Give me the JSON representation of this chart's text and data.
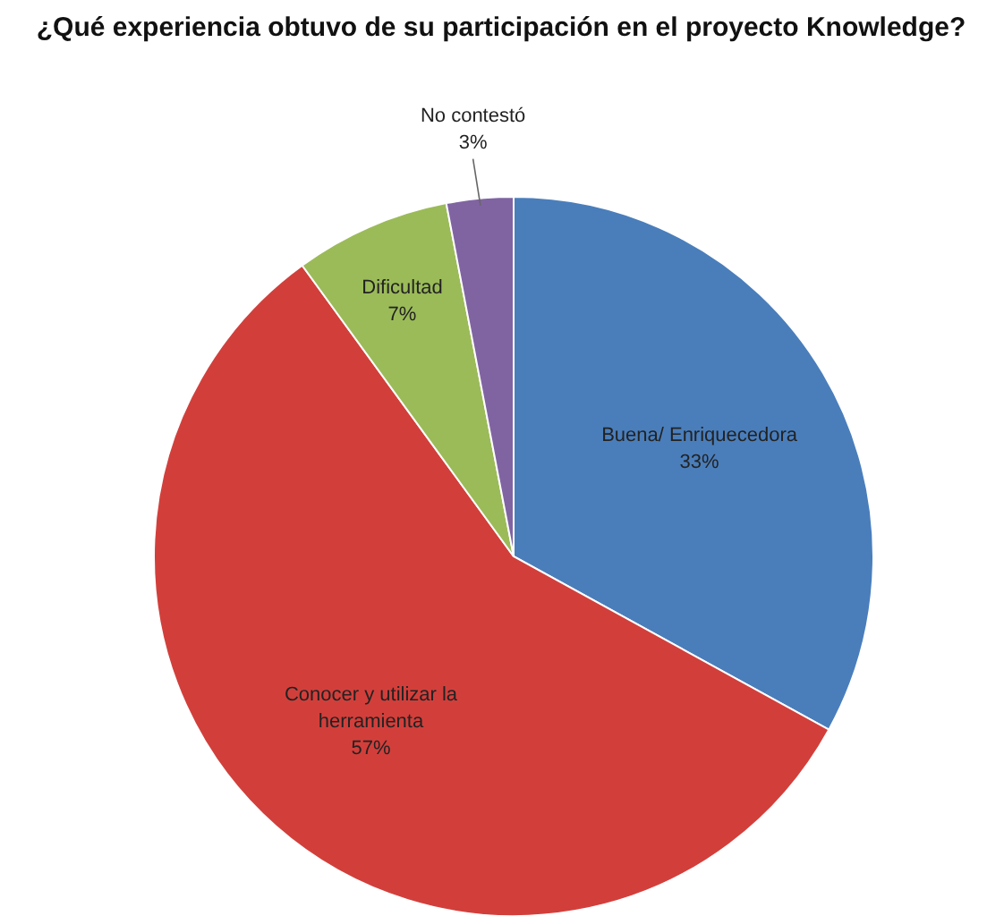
{
  "chart_data": {
    "type": "pie",
    "title": "¿Qué experiencia obtuvo de su participación en el proyecto Knowledge?",
    "categories": [
      "Buena/ Enriquecedora",
      "Conocer y utilizar la herramienta",
      "Dificultad",
      "No contestó"
    ],
    "values": [
      33,
      57,
      7,
      3
    ],
    "colors": [
      "#4a7ebb",
      "#d23f3b",
      "#9bbb59",
      "#8064a2"
    ],
    "value_labels": [
      "33%",
      "57%",
      "7%",
      "3%"
    ],
    "legend": false
  }
}
